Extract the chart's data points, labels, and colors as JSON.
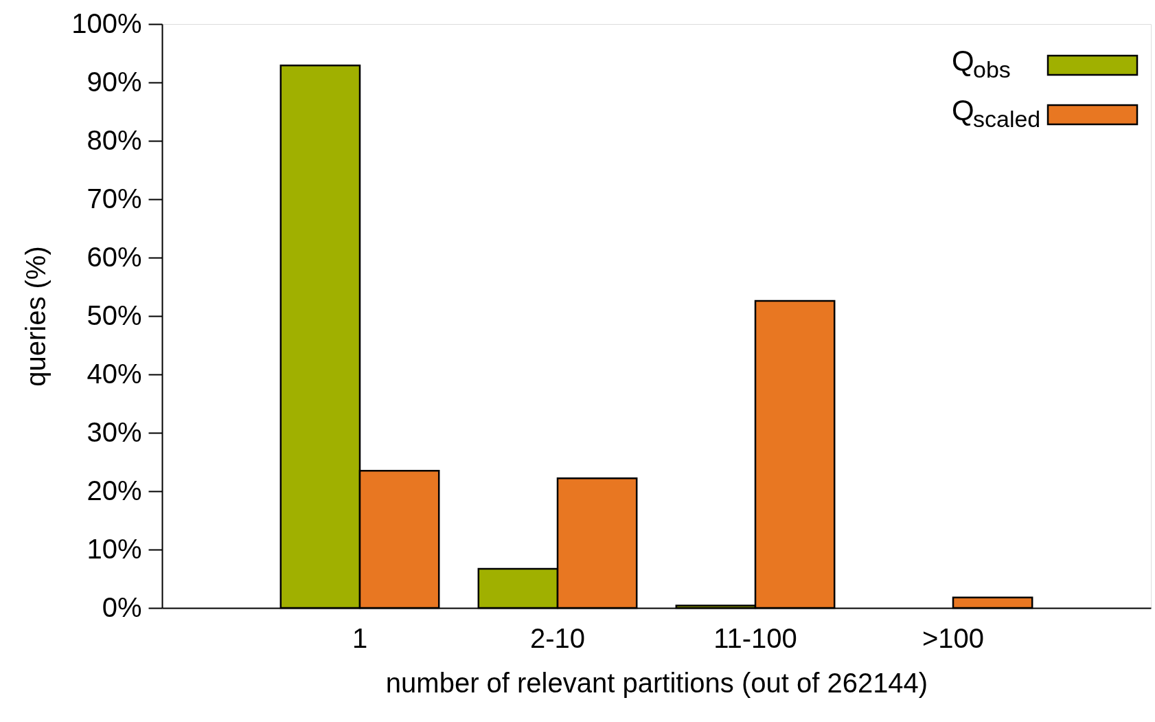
{
  "chart_data": {
    "type": "bar",
    "xlabel": "number of relevant partitions (out of 262144)",
    "ylabel": "queries (%)",
    "categories": [
      "1",
      "2-10",
      "11-100",
      ">100"
    ],
    "series": [
      {
        "name": "Q$_{obs}$",
        "color": "#a0b000",
        "values": [
          92.9,
          6.7,
          0.4,
          null
        ]
      },
      {
        "name": "Q$_{scaled}$",
        "color": "#e87722",
        "values": [
          23.5,
          22.2,
          52.6,
          1.8
        ]
      }
    ],
    "ylim": [
      0,
      100
    ],
    "yticks": [
      {
        "value": 0,
        "label": "0%"
      },
      {
        "value": 10,
        "label": "10%"
      },
      {
        "value": 20,
        "label": "20%"
      },
      {
        "value": 30,
        "label": "30%"
      },
      {
        "value": 40,
        "label": "40%"
      },
      {
        "value": 50,
        "label": "50%"
      },
      {
        "value": 60,
        "label": "60%"
      },
      {
        "value": 70,
        "label": "70%"
      },
      {
        "value": 80,
        "label": "80%"
      },
      {
        "value": 90,
        "label": "90%"
      },
      {
        "value": 100,
        "label": "100%"
      }
    ],
    "grid": false,
    "legend": "top right"
  }
}
